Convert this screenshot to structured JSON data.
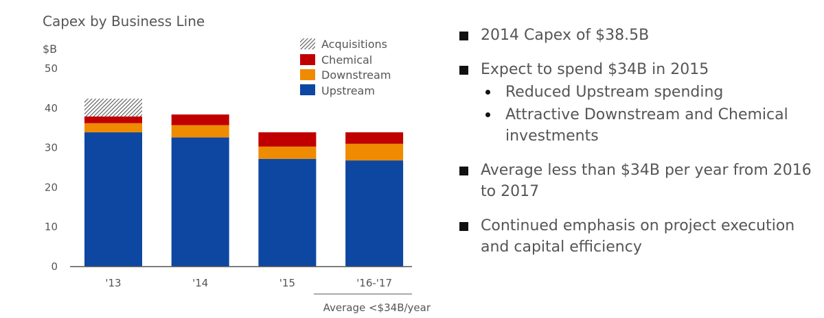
{
  "colors": {
    "upstream": "#0d47a1",
    "downstream": "#ee8b00",
    "chemical": "#c00000",
    "acquisitions_stroke": "#555555",
    "axis": "#555555",
    "text": "#555555"
  },
  "chart_data": {
    "type": "bar",
    "stacked": true,
    "title": "Capex by Business Line",
    "ylabel": "$B",
    "xlabel": "",
    "ylim": [
      0,
      50
    ],
    "yticks": [
      0,
      10,
      20,
      30,
      40,
      50
    ],
    "ytick_labels": [
      "0",
      "10",
      "20",
      "30",
      "40",
      "50"
    ],
    "categories": [
      "'13",
      "'14",
      "'15",
      "'16-'17"
    ],
    "series": [
      {
        "name": "Upstream",
        "key": "upstream",
        "values": [
          33.9,
          32.6,
          27.2,
          26.8
        ]
      },
      {
        "name": "Downstream",
        "key": "downstream",
        "values": [
          2.3,
          3.1,
          3.1,
          4.2
        ]
      },
      {
        "name": "Chemical",
        "key": "chemical",
        "values": [
          1.7,
          2.7,
          3.6,
          2.9
        ]
      },
      {
        "name": "Acquisitions",
        "key": "acquisitions",
        "values": [
          4.5,
          0,
          0,
          0
        ],
        "pattern": "hatched"
      }
    ],
    "legend": {
      "placement": "top-right",
      "entries": [
        "Acquisitions",
        "Chemical",
        "Downstream",
        "Upstream"
      ]
    },
    "annotation": "Average <$34B/year",
    "grid": false
  },
  "bullets": [
    {
      "level": 1,
      "text": "2014 Capex of $38.5B"
    },
    {
      "level": 1,
      "text": "Expect to spend $34B in 2015"
    },
    {
      "level": 2,
      "text": "Reduced Upstream spending"
    },
    {
      "level": 2,
      "text": "Attractive Downstream and Chemical investments"
    },
    {
      "level": 1,
      "text": "Average less than $34B per year from 2016 to 2017"
    },
    {
      "level": 1,
      "text": "Continued emphasis on project execution and capital efficiency"
    }
  ]
}
